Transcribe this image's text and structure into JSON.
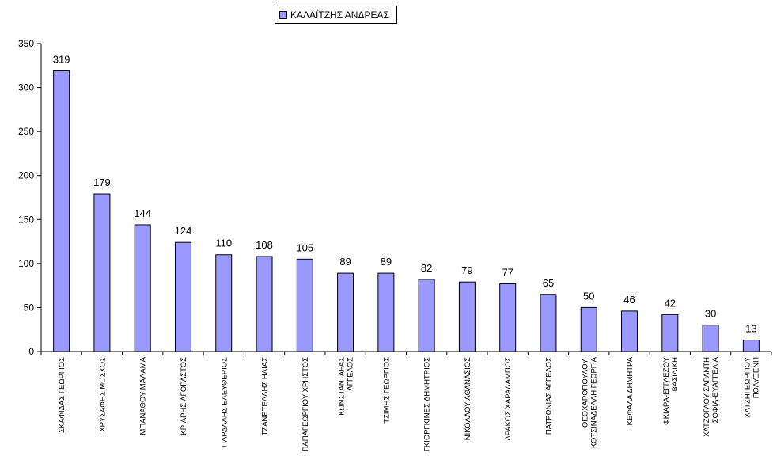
{
  "chart_data": {
    "type": "bar",
    "series": [
      {
        "name": "ΚΑΛΑΪΤΖΗΣ ΑΝΔΡΕΑΣ",
        "values": [
          319,
          179,
          144,
          124,
          110,
          108,
          105,
          89,
          89,
          82,
          79,
          77,
          65,
          50,
          46,
          42,
          30,
          13
        ]
      }
    ],
    "categories": [
      [
        "ΣΚΑΦΙΔΑΣ ΓΕΩΡΓΙΟΣ"
      ],
      [
        "ΧΡΥΣΑΦΗΣ ΜΟΣΧΟΣ"
      ],
      [
        "ΜΠΑΝΑΘΟΥ ΜΑΛΑΜΑ"
      ],
      [
        "ΚΡΙΑΡΗΣ ΑΓΟΡΑΣΤΟΣ"
      ],
      [
        "ΠΑΡΔΑΛΗΣ ΕΛΕΥΘΕΡΙΟΣ"
      ],
      [
        "ΤΖΑΝΕΤΕΛΛΗΣ ΗΛΙΑΣ"
      ],
      [
        "ΠΑΠΑΓΕΩΡΓΙΟΥ ΧΡΗΣΤΟΣ"
      ],
      [
        "ΚΩΝΣΤΑΝΤΑΡΑΣ",
        "ΑΓΓΕΛΟΣ"
      ],
      [
        "ΤΖΙΜΗΣ ΓΕΩΡΓΙΟΣ"
      ],
      [
        "ΓΚΙΟΡΓΚΙΝΕΣ ΔΗΜΗΤΡΙΟΣ"
      ],
      [
        "ΝΙΚΟΛΑΟΥ ΑΘΑΝΑΣΙΟΣ"
      ],
      [
        "ΔΡΑΚΟΣ ΧΑΡΑΛΑΜΠΟΣ"
      ],
      [
        "ΠΑΤΡΩΝΙΑΣ ΑΓΓΕΛΟΣ"
      ],
      [
        "ΘΕΟΧΑΡΟΠΟΥΛΟΥ-",
        "ΚΟΤΣΙΝΑΔΕΛΛΗ ΓΕΩΡΓΙΑ"
      ],
      [
        "ΚΕΦΑΛΑ ΔΗΜΗΤΡΑ"
      ],
      [
        "ΦΚΙΑΡΑ-ΕΓΓΛΕΖΟΥ",
        "ΒΑΣΙΛΙΚΗ"
      ],
      [
        "ΧΑΤΖΟΓΛΟΥ-ΣΑΡΑΝΤΗ",
        "ΣΟΦΙΑ-ΕΥΑΓΓΕΛΙΑ"
      ],
      [
        "ΧΑΤΖΗΓΕΩΡΓΙΟΥ",
        "ΠΟΛΥΞΕΝΗ"
      ]
    ],
    "ylim": [
      0,
      350
    ],
    "yticks": [
      0,
      50,
      100,
      150,
      200,
      250,
      300,
      350
    ],
    "grid": false,
    "legend": "top-center",
    "data_labels": true,
    "colors": {
      "bar": "#9999ff",
      "bar_stroke": "#000000"
    }
  }
}
